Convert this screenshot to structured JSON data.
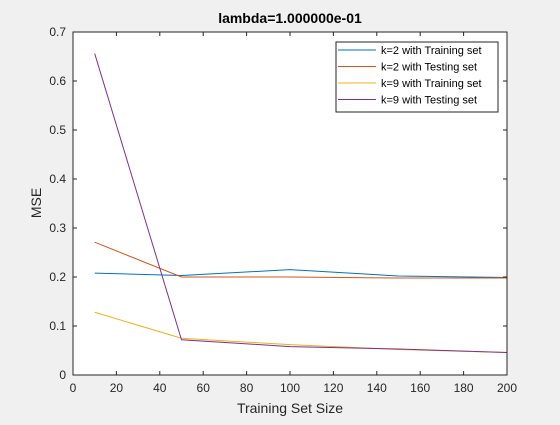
{
  "chart_data": {
    "type": "line",
    "title": "lambda=1.000000e-01",
    "xlabel": "Training Set Size",
    "ylabel": "MSE",
    "xlim": [
      0,
      200
    ],
    "ylim": [
      0,
      0.7
    ],
    "xticks": [
      0,
      20,
      40,
      60,
      80,
      100,
      120,
      140,
      160,
      180,
      200
    ],
    "yticks": [
      0,
      0.1,
      0.2,
      0.3,
      0.4,
      0.5,
      0.6,
      0.7
    ],
    "ytick_labels": [
      "0",
      "0.1",
      "0.2",
      "0.3",
      "0.4",
      "0.5",
      "0.6",
      "0.7"
    ],
    "grid": false,
    "legend_position": "top-right",
    "series": [
      {
        "name": "k=2 with Training set",
        "color": "#0072BD",
        "x": [
          10,
          50,
          100,
          150,
          200
        ],
        "y": [
          0.208,
          0.203,
          0.215,
          0.202,
          0.199
        ]
      },
      {
        "name": "k=2 with Testing set",
        "color": "#D95319",
        "x": [
          10,
          50,
          100,
          150,
          200
        ],
        "y": [
          0.271,
          0.2,
          0.2,
          0.198,
          0.198
        ]
      },
      {
        "name": "k=9 with Training set",
        "color": "#EDB120",
        "x": [
          10,
          50,
          100,
          150,
          200
        ],
        "y": [
          0.128,
          0.075,
          0.062,
          0.052,
          0.046
        ]
      },
      {
        "name": "k=9 with Testing set",
        "color": "#7E2F8E",
        "x": [
          10,
          50,
          100,
          150,
          200
        ],
        "y": [
          0.656,
          0.072,
          0.058,
          0.053,
          0.046
        ]
      }
    ]
  }
}
